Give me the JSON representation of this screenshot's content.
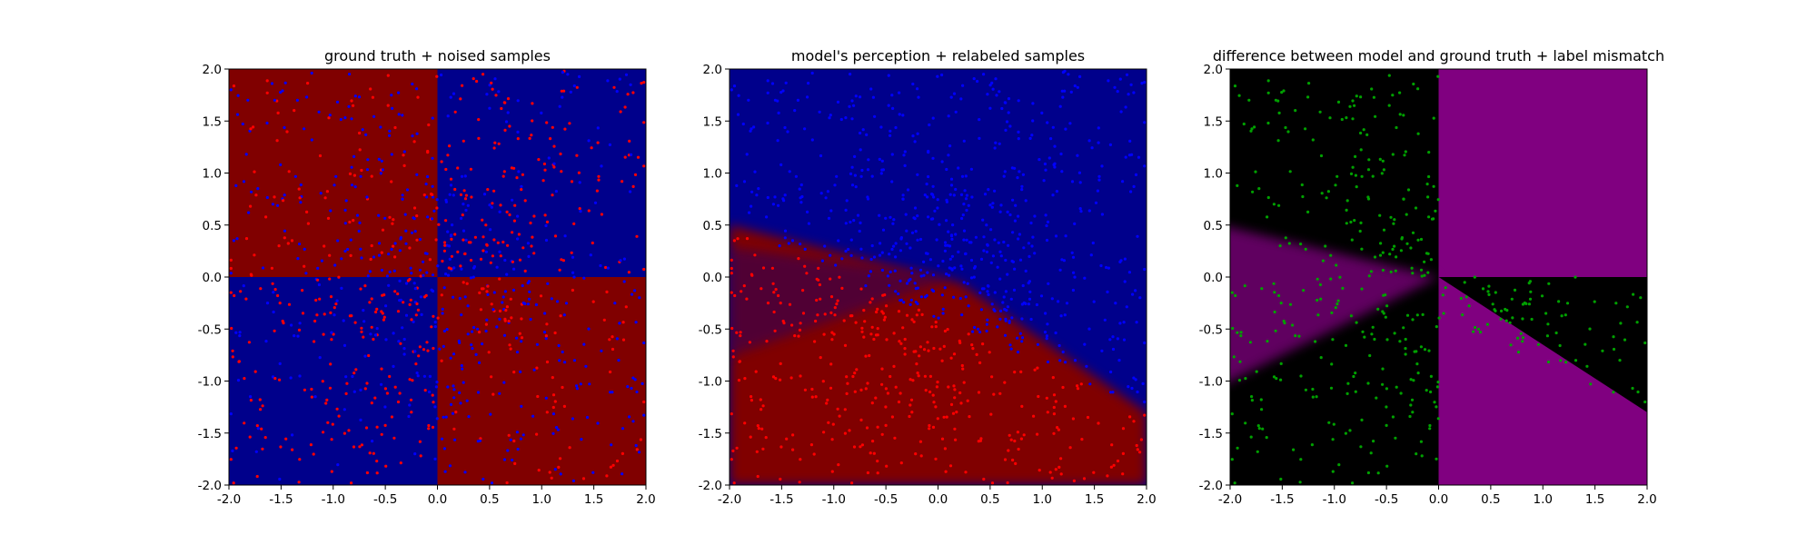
{
  "chart_data": [
    {
      "type": "heatmap",
      "title": "ground truth + noised samples",
      "xlabel": "",
      "ylabel": "",
      "xlim": [
        -2.0,
        2.0
      ],
      "ylim": [
        -2.0,
        2.0
      ],
      "xticks": [
        "-2.0",
        "-1.5",
        "-1.0",
        "-0.5",
        "0.0",
        "0.5",
        "1.0",
        "1.5",
        "2.0"
      ],
      "yticks": [
        "-2.0",
        "-1.5",
        "-1.0",
        "-0.5",
        "0.0",
        "0.5",
        "1.0",
        "1.5",
        "2.0"
      ],
      "background": "XOR quadrants: red where x*y<0, blue where x*y>0",
      "region_colors": {
        "red": "#800000",
        "blue": "#00008b"
      },
      "series": [
        {
          "marker": "point",
          "color": "#0000ff",
          "count": 500,
          "description_of_rule": "blue points mostly in red quadrants"
        },
        {
          "marker": "point",
          "color": "#ff0000",
          "count": 500,
          "description_of_rule": "red points mostly in blue quadrants"
        }
      ],
      "grid": false
    },
    {
      "type": "heatmap",
      "title": "model's perception + relabeled samples",
      "xlabel": "",
      "ylabel": "",
      "xlim": [
        -2.0,
        2.0
      ],
      "ylim": [
        -2.0,
        2.0
      ],
      "xticks": [
        "-2.0",
        "-1.5",
        "-1.0",
        "-0.5",
        "0.0",
        "0.5",
        "1.0",
        "1.5",
        "2.0"
      ],
      "yticks": [
        "-2.0",
        "-1.5",
        "-1.0",
        "-0.5",
        "0.0",
        "0.5",
        "1.0",
        "1.5",
        "2.0"
      ],
      "background": "model decision regions",
      "boundary": {
        "line": [
          [
            -2.0,
            0.5
          ],
          [
            2.0,
            -1.3
          ]
        ],
        "lower_wedge": [
          [
            -2.0,
            -1.1
          ],
          [
            0.0,
            0.0
          ]
        ]
      },
      "region_colors": {
        "red": "#800000",
        "blue": "#00008b"
      },
      "series": [
        {
          "marker": "point",
          "color": "#0000ff",
          "count": 500
        },
        {
          "marker": "point",
          "color": "#ff0000",
          "count": 500
        }
      ],
      "grid": false
    },
    {
      "type": "heatmap",
      "title": "difference between model and ground truth + label mismatch",
      "xlabel": "",
      "ylabel": "",
      "xlim": [
        -2.0,
        2.0
      ],
      "ylim": [
        -2.0,
        2.0
      ],
      "xticks": [
        "-2.0",
        "-1.5",
        "-1.0",
        "-0.5",
        "0.0",
        "0.5",
        "1.0",
        "1.5",
        "2.0"
      ],
      "yticks": [
        "-2.0",
        "-1.5",
        "-1.0",
        "-0.5",
        "0.0",
        "0.5",
        "1.0",
        "1.5",
        "2.0"
      ],
      "background": "magenta where model differs from ground truth, black elsewhere",
      "region_colors": {
        "diff": "#800080",
        "same": "#000000"
      },
      "series": [
        {
          "marker": "point",
          "color": "#00a000",
          "count": 350
        }
      ],
      "grid": false
    }
  ]
}
